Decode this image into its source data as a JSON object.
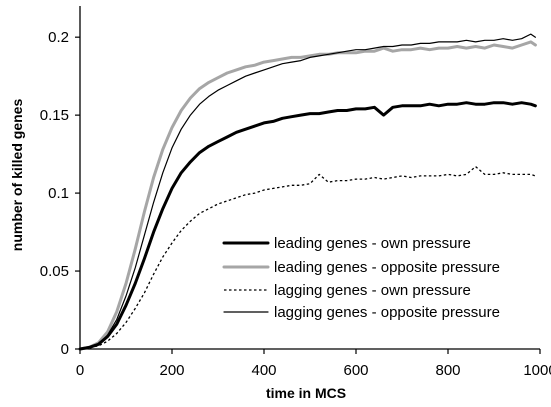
{
  "chart_data": {
    "type": "line",
    "title": "",
    "xlabel": "time in MCS",
    "ylabel": "number of killed genes",
    "xlim": [
      0,
      1000
    ],
    "ylim": [
      0,
      0.22
    ],
    "x_ticks": [
      "0",
      "200",
      "400",
      "600",
      "800",
      "1000"
    ],
    "y_ticks": [
      "0",
      "0.05",
      "0.1",
      "0.15",
      "0.2"
    ],
    "x_tick_values": [
      0,
      200,
      400,
      600,
      800,
      1000
    ],
    "y_tick_values": [
      0,
      0.05,
      0.1,
      0.15,
      0.2
    ],
    "grid": false,
    "legend_position": "lower-right",
    "series": [
      {
        "name": "leading genes - own pressure",
        "color": "#000000",
        "style": "solid-thick",
        "x": [
          0,
          20,
          40,
          60,
          80,
          100,
          120,
          140,
          160,
          180,
          200,
          220,
          240,
          260,
          280,
          300,
          320,
          340,
          360,
          380,
          400,
          420,
          440,
          460,
          480,
          500,
          520,
          540,
          560,
          580,
          600,
          620,
          640,
          660,
          680,
          700,
          720,
          740,
          760,
          780,
          800,
          820,
          840,
          860,
          880,
          900,
          920,
          940,
          960,
          980,
          990
        ],
        "y": [
          0,
          0.001,
          0.003,
          0.008,
          0.016,
          0.028,
          0.042,
          0.058,
          0.075,
          0.09,
          0.103,
          0.113,
          0.12,
          0.126,
          0.13,
          0.133,
          0.136,
          0.139,
          0.141,
          0.143,
          0.145,
          0.146,
          0.148,
          0.149,
          0.15,
          0.151,
          0.151,
          0.152,
          0.153,
          0.153,
          0.154,
          0.154,
          0.155,
          0.15,
          0.155,
          0.156,
          0.156,
          0.156,
          0.157,
          0.156,
          0.157,
          0.157,
          0.158,
          0.157,
          0.157,
          0.158,
          0.158,
          0.157,
          0.158,
          0.157,
          0.156
        ]
      },
      {
        "name": "leading genes - opposite pressure",
        "color": "#a6a6a6",
        "style": "solid-thick",
        "x": [
          0,
          20,
          40,
          60,
          80,
          100,
          120,
          140,
          160,
          180,
          200,
          220,
          240,
          260,
          280,
          300,
          320,
          340,
          360,
          380,
          400,
          420,
          440,
          460,
          480,
          500,
          520,
          540,
          560,
          580,
          600,
          620,
          640,
          660,
          680,
          700,
          720,
          740,
          760,
          780,
          800,
          820,
          840,
          860,
          880,
          900,
          920,
          940,
          960,
          980,
          990
        ],
        "y": [
          0,
          0.001,
          0.004,
          0.011,
          0.024,
          0.042,
          0.064,
          0.088,
          0.11,
          0.128,
          0.142,
          0.153,
          0.161,
          0.167,
          0.171,
          0.174,
          0.177,
          0.179,
          0.181,
          0.182,
          0.184,
          0.185,
          0.186,
          0.187,
          0.187,
          0.188,
          0.189,
          0.189,
          0.19,
          0.19,
          0.19,
          0.191,
          0.191,
          0.193,
          0.191,
          0.192,
          0.192,
          0.193,
          0.192,
          0.193,
          0.193,
          0.194,
          0.193,
          0.194,
          0.193,
          0.195,
          0.194,
          0.193,
          0.195,
          0.197,
          0.195
        ]
      },
      {
        "name": "lagging genes - own pressure",
        "color": "#000000",
        "style": "dotted",
        "x": [
          0,
          20,
          40,
          60,
          80,
          100,
          120,
          140,
          160,
          180,
          200,
          220,
          240,
          260,
          280,
          300,
          320,
          340,
          360,
          380,
          400,
          420,
          440,
          460,
          480,
          500,
          520,
          540,
          560,
          580,
          600,
          620,
          640,
          660,
          680,
          700,
          720,
          740,
          760,
          780,
          800,
          820,
          840,
          860,
          880,
          900,
          920,
          940,
          960,
          980,
          990
        ],
        "y": [
          0,
          0.001,
          0.002,
          0.005,
          0.01,
          0.017,
          0.026,
          0.036,
          0.048,
          0.059,
          0.068,
          0.076,
          0.082,
          0.087,
          0.09,
          0.093,
          0.095,
          0.097,
          0.099,
          0.1,
          0.102,
          0.103,
          0.104,
          0.105,
          0.105,
          0.106,
          0.112,
          0.107,
          0.108,
          0.108,
          0.109,
          0.109,
          0.11,
          0.109,
          0.11,
          0.111,
          0.11,
          0.111,
          0.111,
          0.111,
          0.112,
          0.111,
          0.112,
          0.117,
          0.112,
          0.112,
          0.113,
          0.112,
          0.112,
          0.112,
          0.111
        ]
      },
      {
        "name": "lagging genes - opposite pressure",
        "color": "#000000",
        "style": "solid-thin",
        "x": [
          0,
          20,
          40,
          60,
          80,
          100,
          120,
          140,
          160,
          180,
          200,
          220,
          240,
          260,
          280,
          300,
          320,
          340,
          360,
          380,
          400,
          420,
          440,
          460,
          480,
          500,
          520,
          540,
          560,
          580,
          600,
          620,
          640,
          660,
          680,
          700,
          720,
          740,
          760,
          780,
          800,
          820,
          840,
          860,
          880,
          900,
          920,
          940,
          960,
          980,
          990
        ],
        "y": [
          0,
          0.001,
          0.003,
          0.009,
          0.019,
          0.034,
          0.052,
          0.073,
          0.094,
          0.113,
          0.129,
          0.141,
          0.15,
          0.157,
          0.162,
          0.166,
          0.169,
          0.172,
          0.175,
          0.177,
          0.179,
          0.181,
          0.183,
          0.184,
          0.185,
          0.187,
          0.188,
          0.189,
          0.19,
          0.191,
          0.192,
          0.192,
          0.193,
          0.194,
          0.194,
          0.195,
          0.195,
          0.196,
          0.196,
          0.197,
          0.197,
          0.197,
          0.198,
          0.197,
          0.198,
          0.198,
          0.199,
          0.198,
          0.199,
          0.202,
          0.2
        ]
      }
    ]
  }
}
